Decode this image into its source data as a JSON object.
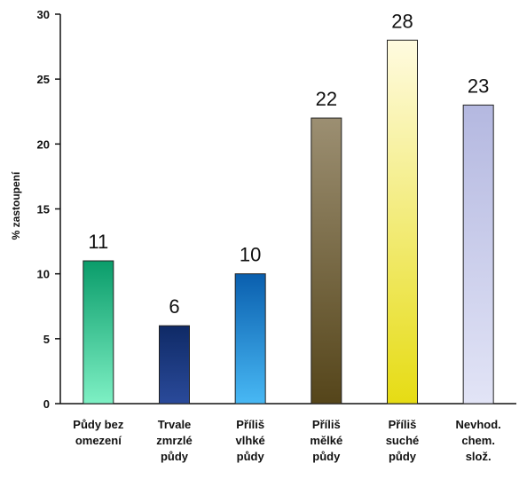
{
  "chart_data": {
    "type": "bar",
    "categories": [
      [
        "Půdy bez",
        "omezení"
      ],
      [
        "Trvale",
        "zmrzlé",
        "půdy"
      ],
      [
        "Příliš",
        "vlhké",
        "půdy"
      ],
      [
        "Příliš",
        "mělké",
        "půdy"
      ],
      [
        "Příliš",
        "suché",
        "půdy"
      ],
      [
        "Nevhod.",
        "chem.",
        "slož."
      ]
    ],
    "values": [
      11,
      6,
      10,
      22,
      28,
      23
    ],
    "data_labels": [
      "11",
      "6",
      "10",
      "22",
      "28",
      "23"
    ],
    "ylabel": "% zastoupení",
    "ylim": [
      0,
      30
    ],
    "yticks": [
      0,
      5,
      10,
      15,
      20,
      25,
      30
    ],
    "grid": false,
    "bar_colors": [
      [
        "#0a9c6a",
        "#7ef0c4"
      ],
      [
        "#0f2a66",
        "#2a4a9a"
      ],
      [
        "#0a5fae",
        "#48b8f4"
      ],
      [
        "#9c8f72",
        "#55451a"
      ],
      [
        "#fffbe0",
        "#e6dc14"
      ],
      [
        "#b4b8e0",
        "#e2e4f6"
      ]
    ]
  }
}
